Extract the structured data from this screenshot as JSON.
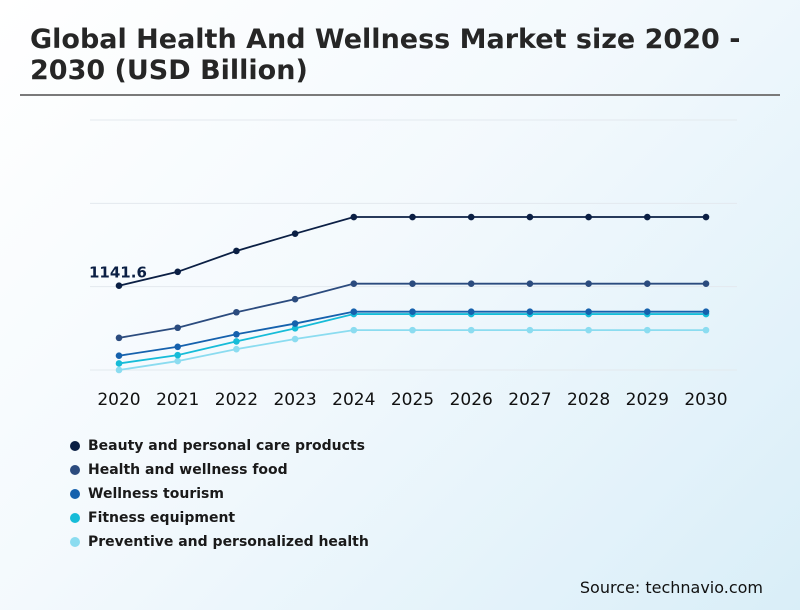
{
  "chart_data": {
    "type": "line",
    "title": "Global Health And Wellness Market size 2020 - 2030 (USD Billion)",
    "source": "Source: technavio.com",
    "x": [
      "2020",
      "2021",
      "2022",
      "2023",
      "2024",
      "2025",
      "2026",
      "2027",
      "2028",
      "2029",
      "2030"
    ],
    "ylim": [
      1000,
      1420
    ],
    "grid": true,
    "legend_position": "bottom-left",
    "annotations": [
      {
        "text": "1141.6",
        "series": 0,
        "x": "2020"
      }
    ],
    "series": [
      {
        "name": "Beauty and personal care products",
        "color": "#0b1f44",
        "values": [
          1141.6,
          1165,
          1200,
          1229,
          1257,
          1257,
          1257,
          1257,
          1257,
          1257,
          1257
        ]
      },
      {
        "name": "Health and wellness food",
        "color": "#2b4b7e",
        "values": [
          1054,
          1071,
          1097,
          1119,
          1145,
          1145,
          1145,
          1145,
          1145,
          1145,
          1145
        ]
      },
      {
        "name": "Wellness tourism",
        "color": "#1561ad",
        "values": [
          1024,
          1039,
          1060,
          1078,
          1098,
          1098,
          1098,
          1098,
          1098,
          1098,
          1098
        ]
      },
      {
        "name": "Fitness equipment",
        "color": "#16bcd8",
        "values": [
          1011,
          1025,
          1048,
          1070,
          1094,
          1094,
          1094,
          1094,
          1094,
          1094,
          1094
        ]
      },
      {
        "name": "Preventive and personalized health",
        "color": "#8bdcf0",
        "values": [
          1000,
          1015,
          1035,
          1052,
          1067,
          1067,
          1067,
          1067,
          1067,
          1067,
          1067
        ]
      }
    ]
  }
}
